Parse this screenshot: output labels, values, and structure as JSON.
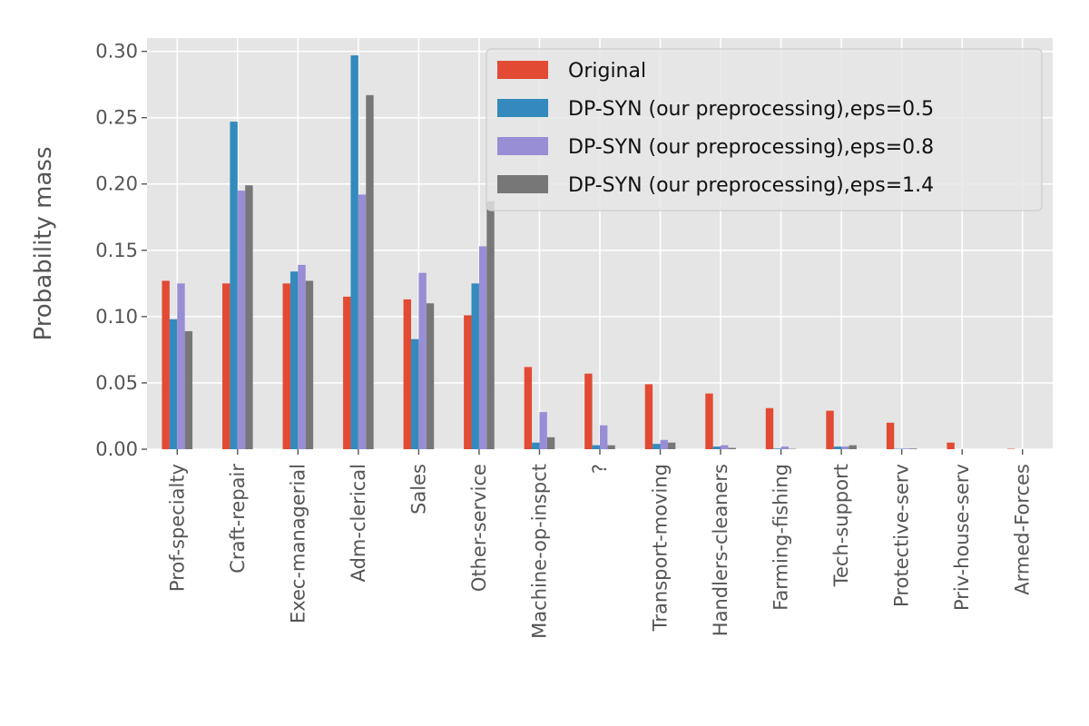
{
  "chart_data": {
    "type": "bar",
    "title": "",
    "xlabel": "",
    "ylabel": "Probability mass",
    "ylim": [
      0,
      0.31
    ],
    "yticks": [
      "0.00",
      "0.05",
      "0.10",
      "0.15",
      "0.20",
      "0.25",
      "0.30"
    ],
    "grid": true,
    "legend_position": "top-right",
    "categories": [
      "Prof-specialty",
      "Craft-repair",
      "Exec-managerial",
      "Adm-clerical",
      "Sales",
      "Other-service",
      "Machine-op-inspct",
      "?",
      "Transport-moving",
      "Handlers-cleaners",
      "Farming-fishing",
      "Tech-support",
      "Protective-serv",
      "Priv-house-serv",
      "Armed-Forces"
    ],
    "series": [
      {
        "name": "Original",
        "color": "#E24A33",
        "values": [
          0.127,
          0.125,
          0.125,
          0.115,
          0.113,
          0.101,
          0.062,
          0.057,
          0.049,
          0.042,
          0.031,
          0.029,
          0.02,
          0.005,
          0.0003
        ]
      },
      {
        "name": "DP-SYN (our preprocessing),eps=0.5",
        "color": "#348ABD",
        "values": [
          0.098,
          0.247,
          0.134,
          0.297,
          0.083,
          0.125,
          0.005,
          0.003,
          0.004,
          0.002,
          0.0005,
          0.002,
          0.0003,
          0.0,
          0.0
        ]
      },
      {
        "name": "DP-SYN (our preprocessing),eps=0.8",
        "color": "#988ED5",
        "values": [
          0.125,
          0.195,
          0.139,
          0.192,
          0.133,
          0.153,
          0.028,
          0.018,
          0.007,
          0.003,
          0.002,
          0.002,
          0.0005,
          0.0,
          0.0
        ]
      },
      {
        "name": "DP-SYN (our preprocessing),eps=1.4",
        "color": "#777777",
        "values": [
          0.089,
          0.199,
          0.127,
          0.267,
          0.11,
          0.187,
          0.009,
          0.003,
          0.005,
          0.001,
          0.0003,
          0.003,
          0.0005,
          0.0,
          0.0
        ]
      }
    ]
  }
}
